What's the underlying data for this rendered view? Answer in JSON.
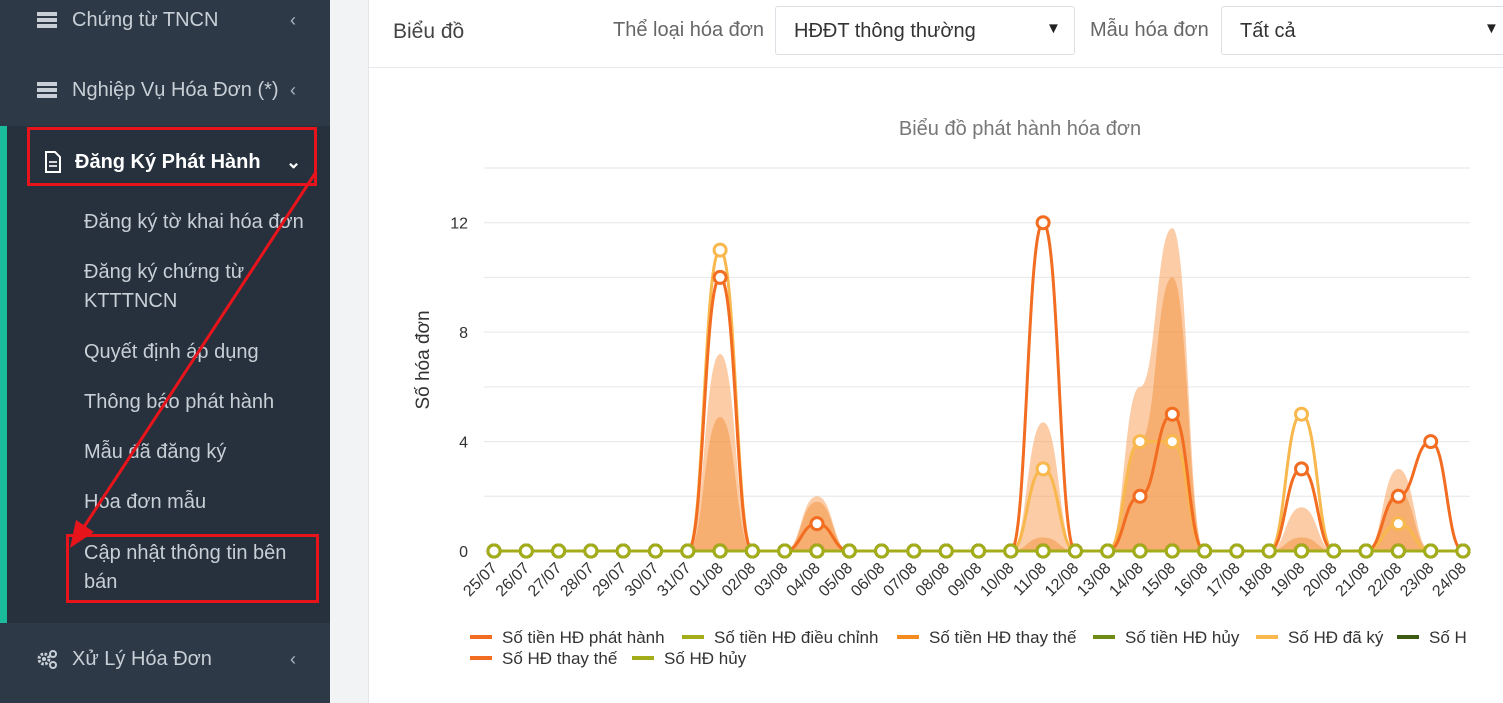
{
  "sidebar": {
    "items": [
      {
        "label": "Chứng từ TNCN",
        "icon": "server-icon"
      },
      {
        "label": "Nghiệp Vụ Hóa Đơn (*)",
        "icon": "server-icon"
      },
      {
        "label": "Đăng Ký Phát Hành",
        "icon": "document-icon"
      },
      {
        "label": "Xử Lý Hóa Đơn",
        "icon": "gears-icon"
      }
    ],
    "subitems": [
      "Đăng ký tờ khai hóa đơn",
      "Đăng ký chứng từ KTTTNCN",
      "Quyết định áp dụng",
      "Thông báo phát hành",
      "Mẫu đã đăng ký",
      "Hóa đơn mẫu",
      "Cập nhật thông tin bên bán"
    ]
  },
  "toolbar": {
    "title": "Biểu đồ",
    "invoice_type_label": "Thể loại hóa đơn",
    "invoice_type_value": "HĐĐT thông thường",
    "template_label": "Mẫu hóa đơn",
    "template_value": "Tất cả"
  },
  "colors": {
    "sidebar_bg": "#2d3947",
    "accent": "#1abc9c",
    "highlight": "#e8141b",
    "series_orange": "#f26d21",
    "series_olive": "#a3ad1a",
    "series_amber": "#f7a32c",
    "series_green": "#6e8b13",
    "series_light": "#f8b84e",
    "series_dark": "#3d5a12"
  },
  "chart_data": {
    "type": "line",
    "title": "Biểu đồ phát hành hóa đơn",
    "ylabel": "Số hóa đơn",
    "ylim": [
      0,
      14
    ],
    "yticks": [
      0,
      4,
      8,
      12
    ],
    "categories": [
      "25/07",
      "26/07",
      "27/07",
      "28/07",
      "29/07",
      "30/07",
      "31/07",
      "01/08",
      "02/08",
      "03/08",
      "04/08",
      "05/08",
      "06/08",
      "07/08",
      "08/08",
      "09/08",
      "10/08",
      "11/08",
      "12/08",
      "13/08",
      "14/08",
      "15/08",
      "16/08",
      "17/08",
      "18/08",
      "19/08",
      "20/08",
      "21/08",
      "22/08",
      "23/08",
      "24/08"
    ],
    "area_series": [
      {
        "name": "Số tiền HĐ phát hành",
        "color": "#f7a35c",
        "opacity": 0.55,
        "values": [
          0,
          0,
          0,
          0,
          0,
          0,
          0,
          7.2,
          0,
          0,
          2,
          0,
          0,
          0,
          0,
          0,
          0,
          4.7,
          0,
          0,
          6,
          11.8,
          0,
          0,
          0,
          1.6,
          0,
          0,
          3,
          0,
          0
        ]
      },
      {
        "name": "Số tiền HĐ thay thế",
        "color": "#f28a30",
        "opacity": 0.45,
        "values": [
          0,
          0,
          0,
          0,
          0,
          0,
          0,
          4.9,
          0,
          0,
          1.8,
          0,
          0,
          0,
          0,
          0,
          0,
          0.5,
          0,
          0,
          4,
          10,
          0,
          0,
          0,
          0.5,
          0,
          0,
          2.2,
          0,
          0
        ]
      }
    ],
    "series": [
      {
        "name": "Số tiền HĐ phát hành",
        "color": "#f26d21",
        "values": [
          0,
          0,
          0,
          0,
          0,
          0,
          0,
          0,
          0,
          0,
          0,
          0,
          0,
          0,
          0,
          0,
          0,
          0,
          0,
          0,
          0,
          0,
          0,
          0,
          0,
          0,
          0,
          0,
          0,
          0,
          0
        ]
      },
      {
        "name": "Số tiền HĐ điều chỉnh",
        "color": "#a3ad1a",
        "values": [
          0,
          0,
          0,
          0,
          0,
          0,
          0,
          0,
          0,
          0,
          0,
          0,
          0,
          0,
          0,
          0,
          0,
          0,
          0,
          0,
          0,
          0,
          0,
          0,
          0,
          0,
          0,
          0,
          0,
          0,
          0
        ]
      },
      {
        "name": "Số tiền HĐ thay thế",
        "color": "#f58a1f",
        "values": [
          0,
          0,
          0,
          0,
          0,
          0,
          0,
          0,
          0,
          0,
          0,
          0,
          0,
          0,
          0,
          0,
          0,
          0,
          0,
          0,
          0,
          0,
          0,
          0,
          0,
          0,
          0,
          0,
          0,
          0,
          0
        ]
      },
      {
        "name": "Số tiền HĐ hủy",
        "color": "#6e8b13",
        "values": [
          0,
          0,
          0,
          0,
          0,
          0,
          0,
          0,
          0,
          0,
          0,
          0,
          0,
          0,
          0,
          0,
          0,
          0,
          0,
          0,
          0,
          0,
          0,
          0,
          0,
          0,
          0,
          0,
          0,
          0,
          0
        ]
      },
      {
        "name": "Số HĐ đã ký",
        "color": "#f8b84e",
        "values": [
          0,
          0,
          0,
          0,
          0,
          0,
          0,
          11,
          0,
          0,
          1,
          0,
          0,
          0,
          0,
          0,
          0,
          3,
          0,
          0,
          4,
          4,
          0,
          0,
          0,
          5,
          0,
          0,
          1,
          0,
          0
        ]
      },
      {
        "name": "Số H",
        "color": "#3d5a12",
        "values": [
          0,
          0,
          0,
          0,
          0,
          0,
          0,
          0,
          0,
          0,
          0,
          0,
          0,
          0,
          0,
          0,
          0,
          0,
          0,
          0,
          0,
          0,
          0,
          0,
          0,
          0,
          0,
          0,
          0,
          0,
          0
        ]
      },
      {
        "name": "Số HĐ thay thế",
        "color": "#f26d21",
        "values": [
          0,
          0,
          0,
          0,
          0,
          0,
          0,
          10,
          0,
          0,
          1,
          0,
          0,
          0,
          0,
          0,
          0,
          12,
          0,
          0,
          2,
          5,
          0,
          0,
          0,
          3,
          0,
          0,
          2,
          4,
          0
        ]
      },
      {
        "name": "Số HĐ hủy",
        "color": "#a3ad1a",
        "values": [
          0,
          0,
          0,
          0,
          0,
          0,
          0,
          0,
          0,
          0,
          0,
          0,
          0,
          0,
          0,
          0,
          0,
          0,
          0,
          0,
          0,
          0,
          0,
          0,
          0,
          0,
          0,
          0,
          0,
          0,
          0
        ]
      }
    ],
    "legend": [
      "Số tiền HĐ phát hành",
      "Số tiền HĐ điều chỉnh",
      "Số tiền HĐ thay thế",
      "Số tiền HĐ hủy",
      "Số HĐ đã ký",
      "Số H",
      "Số HĐ thay thế",
      "Số HĐ hủy"
    ],
    "legend_position": "bottom",
    "grid": true
  }
}
